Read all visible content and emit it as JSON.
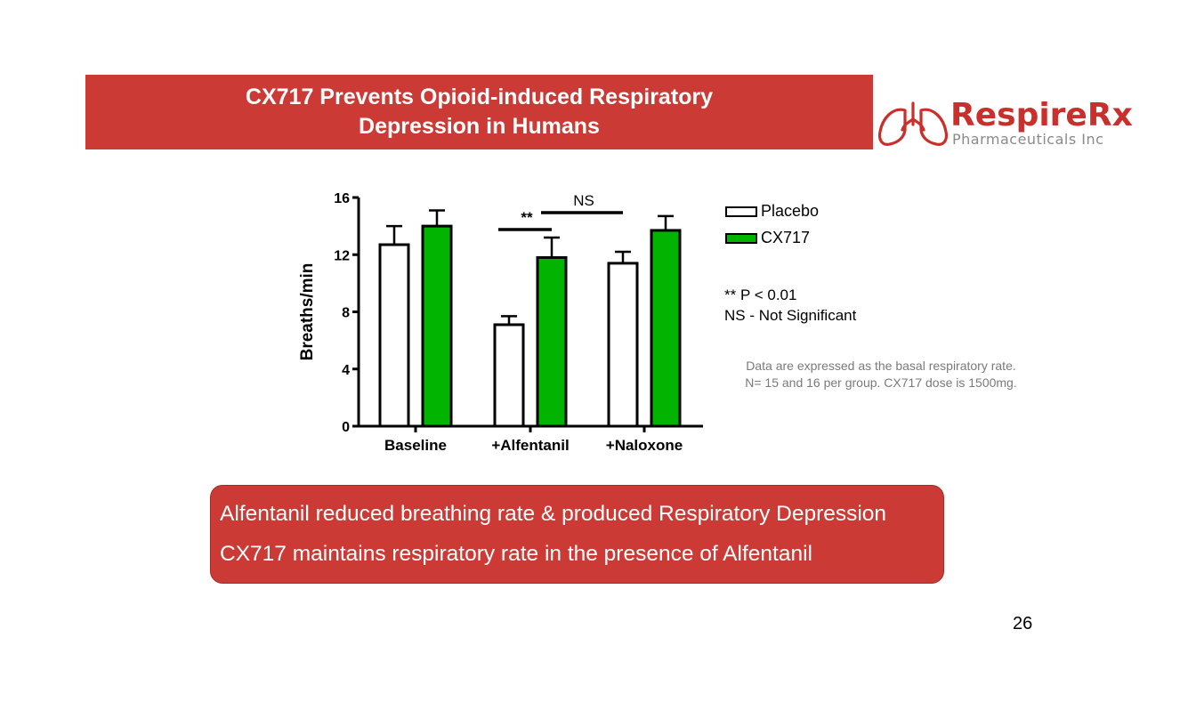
{
  "slide": {
    "title_lines": [
      "CX717 Prevents Opioid-induced Respiratory",
      "Depression in Humans"
    ],
    "page_number": "26",
    "accent_color": "#cc3a36"
  },
  "logo": {
    "name": "RespireRx",
    "subtitle": "Pharmaceuticals Inc",
    "icon": "lungs-icon"
  },
  "legend": {
    "items": [
      {
        "label": "Placebo",
        "color": "#ffffff"
      },
      {
        "label": "CX717",
        "color": "#00b400"
      }
    ]
  },
  "notes": {
    "significance": "** P < 0.01",
    "ns": "NS - Not  Significant",
    "data_lines": [
      "Data are expressed as the basal respiratory rate.",
      "N= 15 and 16 per group. CX717 dose is 1500mg."
    ]
  },
  "callout": {
    "lines": [
      "Alfentanil reduced breathing rate & produced Respiratory Depression",
      "CX717 maintains respiratory rate in the presence of Alfentanil"
    ]
  },
  "chart_data": {
    "type": "bar",
    "categories": [
      "Baseline",
      "+Alfentanil",
      "+Naloxone"
    ],
    "series": [
      {
        "name": "Placebo",
        "values": [
          12.7,
          7.1,
          11.4
        ],
        "errors": [
          1.3,
          0.6,
          0.8
        ],
        "color": "#ffffff"
      },
      {
        "name": "CX717",
        "values": [
          14.0,
          11.8,
          13.7
        ],
        "errors": [
          1.1,
          1.4,
          1.0
        ],
        "color": "#00b400"
      }
    ],
    "ylabel": "Breaths/min",
    "xlabel": "",
    "ylim": [
      0,
      16
    ],
    "yticks": [
      0,
      4,
      8,
      12,
      16
    ],
    "annotations": [
      {
        "text": "**",
        "from": "+Alfentanil Placebo",
        "to": "+Alfentanil CX717"
      },
      {
        "text": "NS",
        "from": "+Alfentanil CX717",
        "to": "+Naloxone Placebo"
      }
    ],
    "grid": false,
    "legend_position": "right"
  }
}
